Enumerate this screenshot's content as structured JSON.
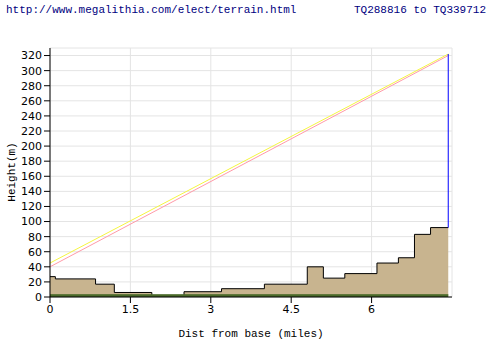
{
  "chart_data": {
    "type": "area",
    "title": "http://www.megalithia.com/elect/terrain.html",
    "subtitle": "TQ288816 to TQ339712",
    "x_label": "Dist from base (miles)",
    "y_label": "Height(m)",
    "xlim": [
      0,
      7.5
    ],
    "xticks": [
      0,
      1.5,
      3,
      4.5,
      6
    ],
    "ylim": [
      0,
      330
    ],
    "yticks": [
      0,
      20,
      40,
      60,
      80,
      100,
      120,
      140,
      160,
      180,
      200,
      220,
      240,
      260,
      280,
      300,
      320
    ],
    "grid": true,
    "series": [
      {
        "type": "area",
        "color": "#c8b48f",
        "line_style": "step",
        "x": [
          0,
          0.1,
          0.85,
          1.2,
          1.9,
          2.5,
          3.2,
          4.0,
          4.8,
          5.1,
          5.5,
          6.1,
          6.5,
          6.8,
          7.1,
          7.43
        ],
        "values": [
          27,
          24,
          17,
          6,
          2,
          7,
          11,
          17,
          40,
          25,
          31,
          45,
          52,
          83,
          92,
          92
        ]
      },
      {
        "type": "area",
        "color": "#4b6b2b",
        "line_style": "solid",
        "x": [
          0,
          7.43
        ],
        "values": [
          3,
          3
        ]
      },
      {
        "type": "line",
        "color": "#f5f540",
        "line_style": "solid",
        "x": [
          0,
          7.43
        ],
        "values": [
          45,
          322
        ]
      },
      {
        "type": "line",
        "color": "#ff9aa8",
        "line_style": "solid",
        "x": [
          0,
          7.43
        ],
        "values": [
          40,
          320
        ]
      },
      {
        "type": "line",
        "color": "#0000ff",
        "line_style": "solid",
        "x": [
          7.43,
          7.43
        ],
        "values": [
          92,
          322
        ]
      }
    ]
  }
}
